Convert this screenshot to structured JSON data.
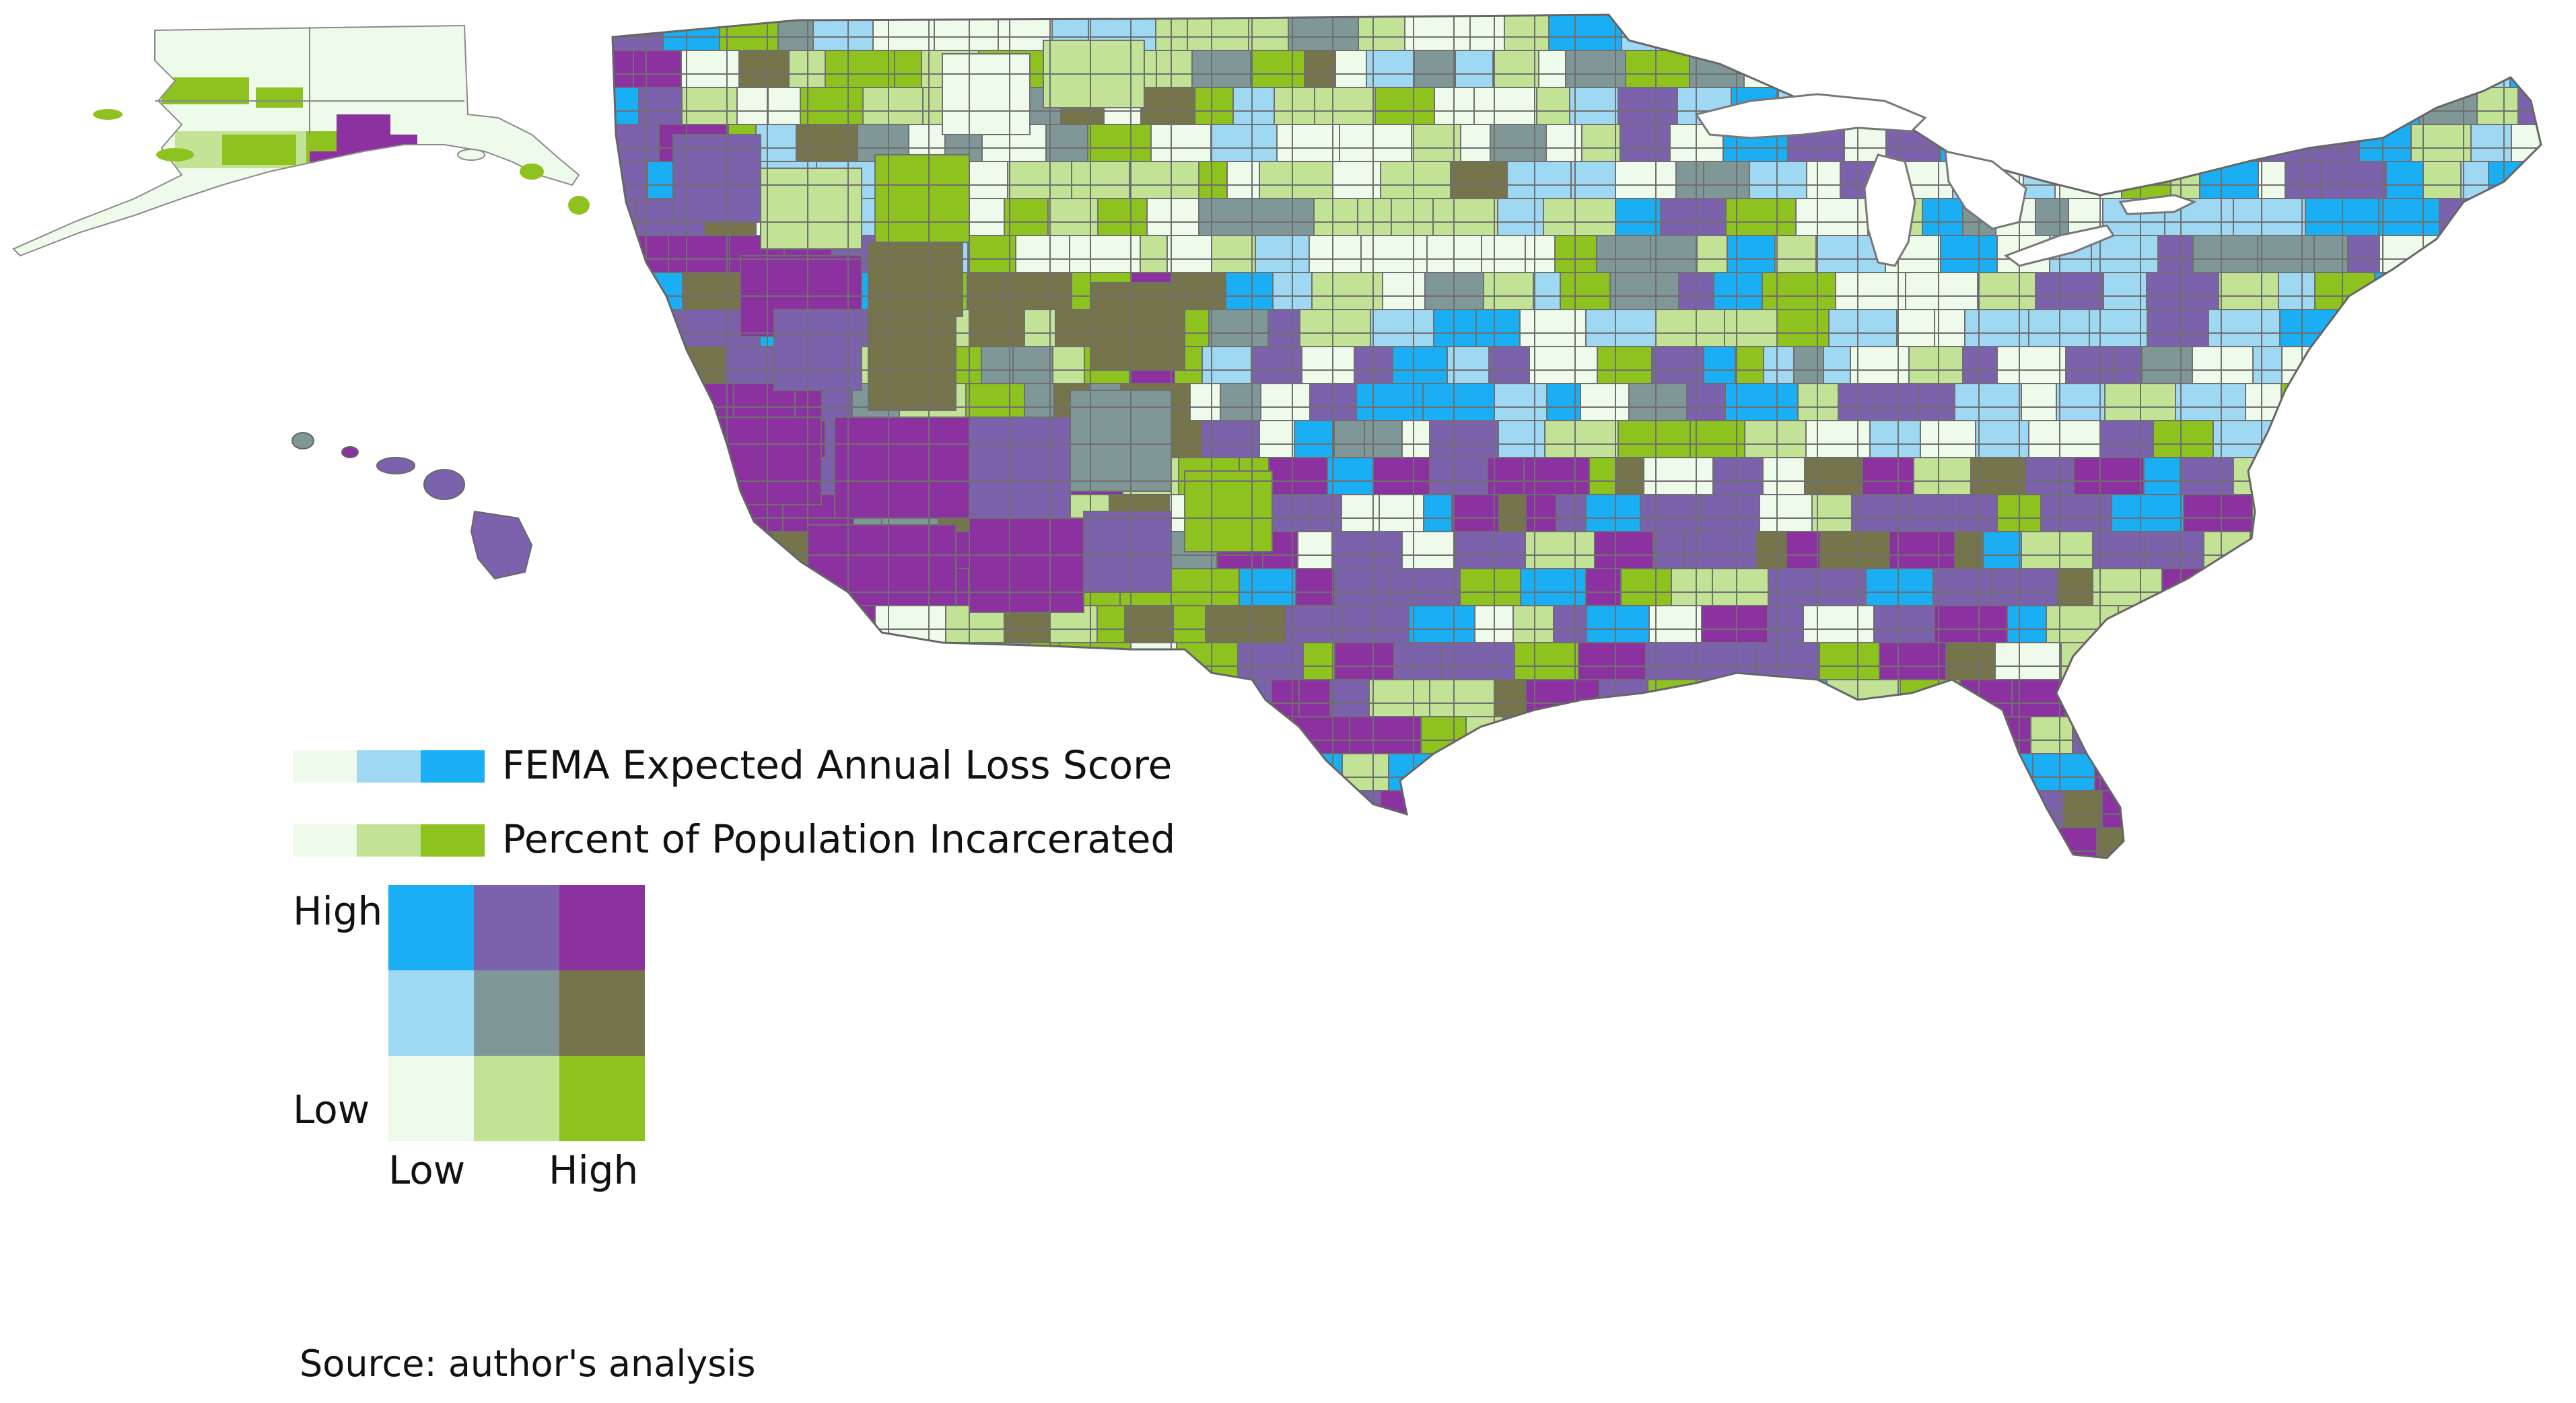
{
  "legend": {
    "fema_label": "FEMA Expected Annual Loss Score",
    "incarceration_label": "Percent of Population Incarcerated",
    "fema_ramp": [
      "#eefaea",
      "#9fd8f3",
      "#1aaef5"
    ],
    "incarceration_ramp": [
      "#eefaea",
      "#c2e295",
      "#8dc21f"
    ],
    "y_high": "High",
    "y_low": "Low",
    "x_low": "Low",
    "x_high": "High",
    "bivariate_matrix": [
      [
        "#1aaef5",
        "#7c62ad",
        "#8c31a0"
      ],
      [
        "#9fd8f3",
        "#7f9797",
        "#76744a"
      ],
      [
        "#eefaea",
        "#c2e295",
        "#8dc21f"
      ]
    ]
  },
  "map": {
    "water_color": "#ffffff",
    "border_color": "#7f7f7f",
    "regions": [
      "contiguous-us",
      "alaska",
      "hawaii"
    ],
    "great_lakes_color": "#ffffff"
  },
  "source": "Source: author's analysis"
}
